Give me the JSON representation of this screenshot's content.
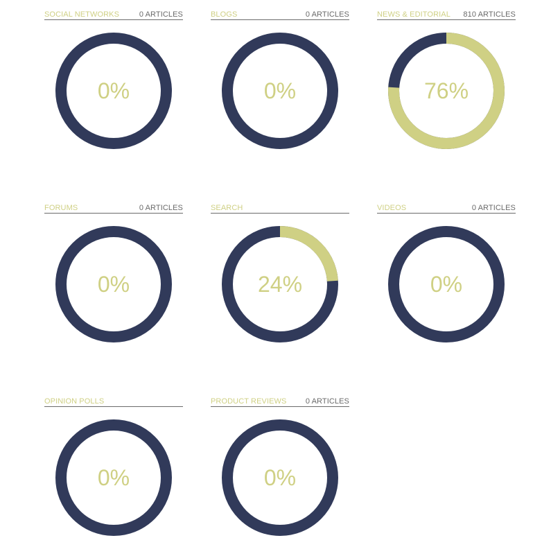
{
  "colors": {
    "accent": "#cfd084",
    "ring": "#313a5a",
    "count_text": "#6a6a6a",
    "background": "#ffffff"
  },
  "chart_data": {
    "type": "pie",
    "variant": "donut",
    "layout": "3-column grid",
    "series": [
      {
        "name": "SOCIAL NETWORKS",
        "value": 0,
        "label": "0%",
        "count_label": "0 ARTICLES"
      },
      {
        "name": "BLOGS",
        "value": 0,
        "label": "0%",
        "count_label": "0 ARTICLES"
      },
      {
        "name": "NEWS & EDITORIAL",
        "value": 76,
        "label": "76%",
        "count_label": "810 ARTICLES"
      },
      {
        "name": "FORUMS",
        "value": 0,
        "label": "0%",
        "count_label": "0 ARTICLES"
      },
      {
        "name": "SEARCH",
        "value": 24,
        "label": "24%",
        "count_label": ""
      },
      {
        "name": "VIDEOS",
        "value": 0,
        "label": "0%",
        "count_label": "0 ARTICLES"
      },
      {
        "name": "OPINION POLLS",
        "value": 0,
        "label": "0%",
        "count_label": ""
      },
      {
        "name": "PRODUCT REVIEWS",
        "value": 0,
        "label": "0%",
        "count_label": "0 ARTICLES"
      }
    ]
  }
}
